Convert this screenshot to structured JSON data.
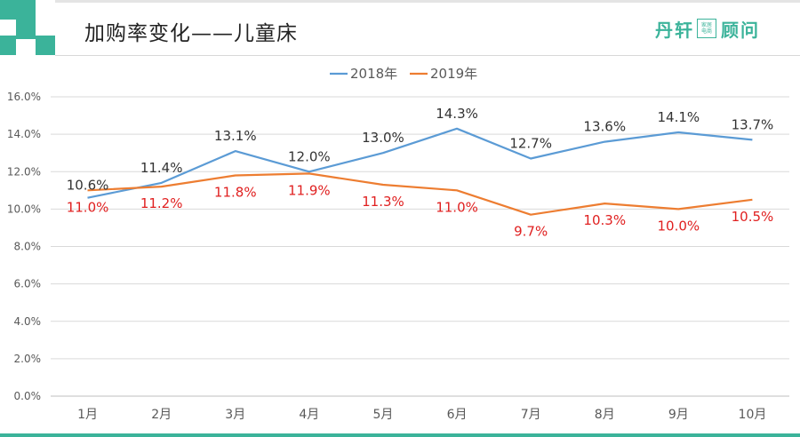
{
  "header": {
    "title": "加购率变化——儿童床",
    "logo": {
      "left_text": "丹轩",
      "badge_top": "家居",
      "badge_bottom": "电商",
      "right_text": "顾问"
    }
  },
  "colors": {
    "accent": "#3bb39a",
    "series_2018": "#5b9bd5",
    "series_2019": "#ed7d31",
    "label_2018": "#333333",
    "label_2019": "#e02020"
  },
  "chart_data": {
    "type": "line",
    "title": "",
    "xlabel": "",
    "ylabel": "",
    "categories": [
      "1月",
      "2月",
      "3月",
      "4月",
      "5月",
      "6月",
      "7月",
      "8月",
      "9月",
      "10月"
    ],
    "yticks": [
      "0.0%",
      "2.0%",
      "4.0%",
      "6.0%",
      "8.0%",
      "10.0%",
      "12.0%",
      "14.0%",
      "16.0%"
    ],
    "ylim": [
      0,
      16
    ],
    "grid": true,
    "legend_position": "top",
    "series": [
      {
        "name": "2018年",
        "values": [
          10.6,
          11.4,
          13.1,
          12.0,
          13.0,
          14.3,
          12.7,
          13.6,
          14.1,
          13.7
        ],
        "labels": [
          "10.6%",
          "11.4%",
          "13.1%",
          "12.0%",
          "13.0%",
          "14.3%",
          "12.7%",
          "13.6%",
          "14.1%",
          "13.7%"
        ]
      },
      {
        "name": "2019年",
        "values": [
          11.0,
          11.2,
          11.8,
          11.9,
          11.3,
          11.0,
          9.7,
          10.3,
          10.0,
          10.5
        ],
        "labels": [
          "11.0%",
          "11.2%",
          "11.8%",
          "11.9%",
          "11.3%",
          "11.0%",
          "9.7%",
          "10.3%",
          "10.0%",
          "10.5%"
        ]
      }
    ]
  }
}
